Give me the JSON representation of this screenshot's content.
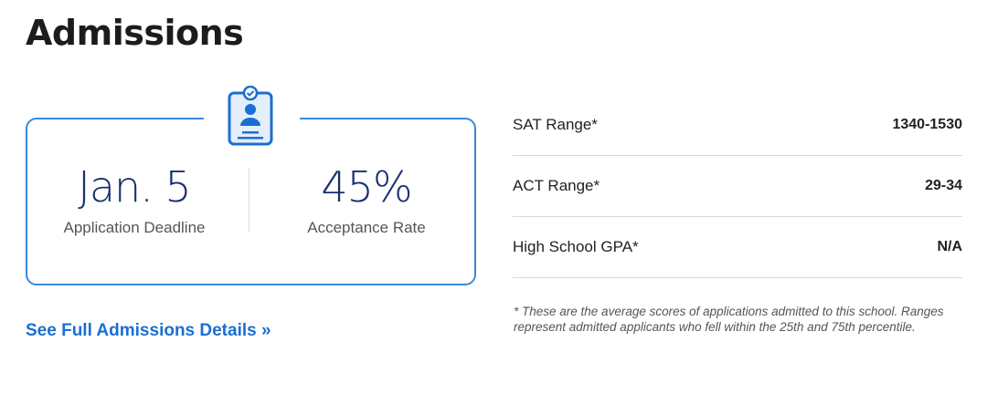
{
  "title": "Admissions",
  "card": {
    "deadline": {
      "value": "Jan. 5",
      "label": "Application Deadline"
    },
    "acceptance": {
      "value": "45%",
      "label": "Acceptance Rate"
    },
    "icon": "id-badge-check-icon"
  },
  "link": "See Full Admissions Details »",
  "scores": [
    {
      "label": "SAT Range*",
      "value": "1340-1530"
    },
    {
      "label": "ACT Range*",
      "value": "29-34"
    },
    {
      "label": "High School GPA*",
      "value": "N/A"
    }
  ],
  "note": "* These are the average scores of applications admitted to this school. Ranges represent admitted applicants who fell within the 25th and 75th percentile.",
  "colors": {
    "accent": "#1a6fd1",
    "numbers": "#16306e"
  }
}
